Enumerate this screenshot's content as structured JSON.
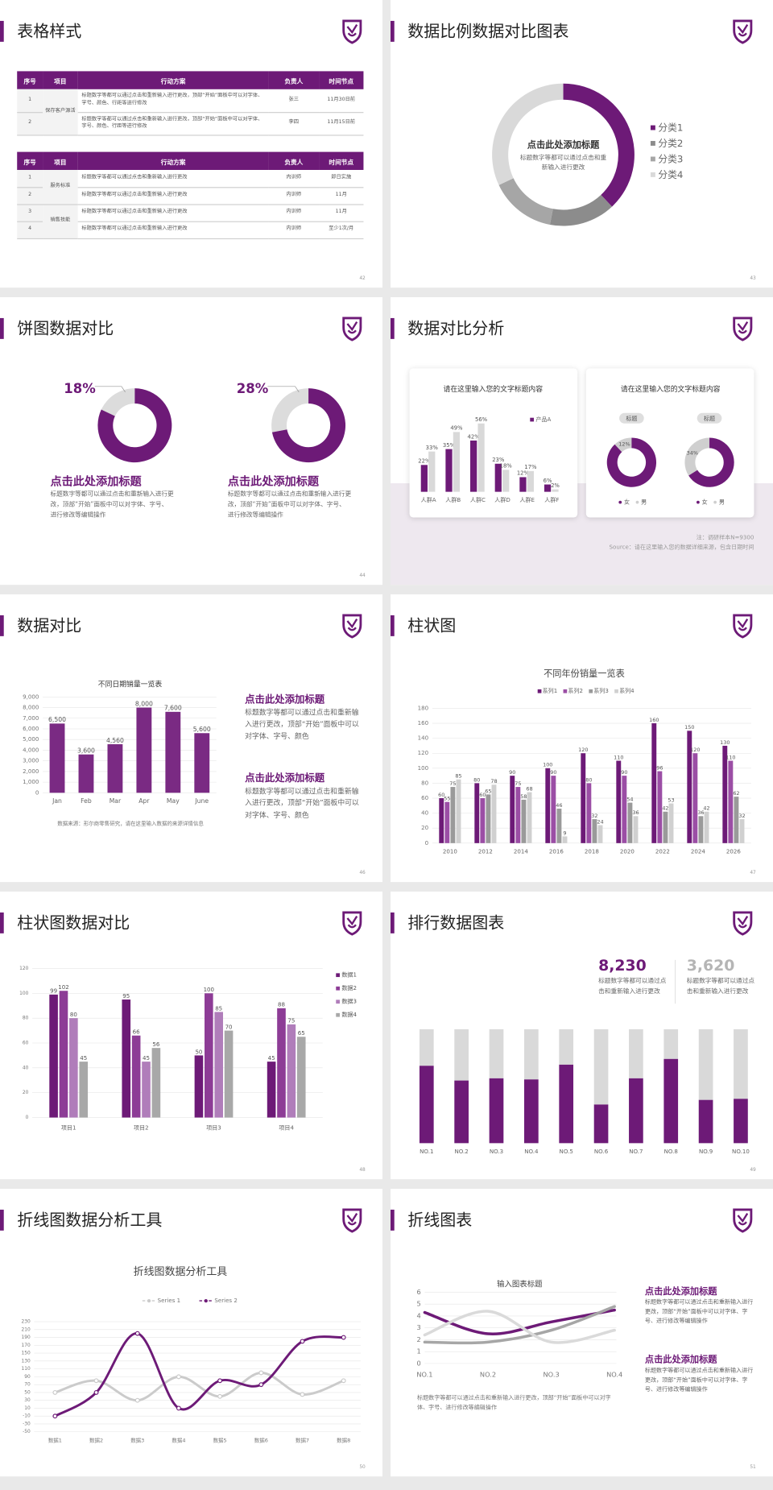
{
  "slides": [
    {
      "title": "表格样式",
      "page": "42",
      "table1": {
        "header": [
          "序号",
          "项目",
          "行动方案",
          "负责人",
          "时间节点"
        ],
        "groups": [
          {
            "project": "保存客户源活",
            "rows": [
              [
                "1",
                "标题数字等都可以通过点击和重新输入进行更改，顶部“开始”面板中可以对字体、字号、颜色、行距等进行修改",
                "张三",
                "11月30日前"
              ],
              [
                "2",
                "标题数字等都可以通过点击和重新输入进行更改，顶部“开始”面板中可以对字体、字号、颜色、行距等进行修改",
                "李四",
                "11月15日前"
              ]
            ]
          }
        ]
      },
      "table2": {
        "header": [
          "序号",
          "项目",
          "行动方案",
          "负责人",
          "时间节点"
        ],
        "groups": [
          {
            "project": "服务标准",
            "rows": [
              [
                "1",
                "标题数字等都可以通过点击和重新输入进行更改",
                "内训师",
                "即日实施"
              ],
              [
                "2",
                "标题数字等都可以通过点击和重新输入进行更改",
                "内训师",
                "11月"
              ]
            ]
          },
          {
            "project": "销售技能",
            "rows": [
              [
                "3",
                "标题数字等都可以通过点击和重新输入进行更改",
                "内训师",
                "11月"
              ],
              [
                "4",
                "标题数字等都可以通过点击和重新输入进行更改",
                "内训师",
                "至少1次/月"
              ]
            ]
          }
        ]
      }
    },
    {
      "title": "数据比例数据对比图表",
      "page": "43",
      "chart": {
        "type": "donut",
        "title": "点击此处添加标题",
        "text": "标题数字等都可以通过点击和重新输入进行更改",
        "categories": [
          "分类1",
          "分类2",
          "分类3",
          "分类4"
        ],
        "values": [
          38,
          15,
          15,
          32
        ],
        "colors": [
          "#6d1a77",
          "#8c8c8c",
          "#a6a6a6",
          "#d9d9d9"
        ]
      }
    },
    {
      "title": "饼图数据对比",
      "page": "44",
      "charts": [
        {
          "type": "donut",
          "values": [
            18
          ],
          "value_labels": [
            "18%"
          ],
          "colors": [
            "#dcdcdc",
            "#6d1a77"
          ],
          "title": "点击此处添加标题",
          "text": "标题数字等都可以通过点击和重新输入进行更改，顶部“开始”面板中可以对字体、字号、进行修改等编辑操作"
        },
        {
          "type": "donut",
          "values": [
            28
          ],
          "value_labels": [
            "28%"
          ],
          "colors": [
            "#dcdcdc",
            "#6d1a77"
          ],
          "title": "点击此处添加标题",
          "text": "标题数字等都可以通过点击和重新输入进行更改，顶部“开始”面板中可以对字体、字号、进行修改等编辑操作"
        }
      ]
    },
    {
      "title": "数据对比分析",
      "page": "45",
      "card1": {
        "title": "请在这里输入您的文字标题内容",
        "chart": {
          "type": "bar",
          "categories": [
            "人群A",
            "人群B",
            "人群C",
            "人群D",
            "人群E",
            "人群F"
          ],
          "series": [
            {
              "name": "产品A",
              "color": "#6d1a77",
              "values": [
                22,
                35,
                42,
                23,
                12,
                6
              ],
              "value_labels": [
                "22%",
                "35%",
                "42%",
                "23%",
                "12%",
                "6%"
              ]
            },
            {
              "color": "#d9d9d9",
              "values": [
                33,
                49,
                56,
                18,
                17,
                2
              ],
              "value_labels": [
                "33%",
                "49%",
                "56%",
                "18%",
                "17%",
                "2%"
              ]
            }
          ]
        }
      },
      "card2": {
        "title": "请在这里输入您的文字标题内容",
        "legend": [
          "女",
          "男"
        ],
        "colors": [
          "#6d1a77",
          "#cfcfcf"
        ],
        "charts": [
          {
            "type": "donut",
            "badge": "标题",
            "values": [
              12
            ],
            "value_labels": [
              "12%"
            ]
          },
          {
            "type": "donut",
            "badge": "标题",
            "values": [
              34
            ],
            "value_labels": [
              "34%"
            ]
          }
        ]
      },
      "notes": [
        "注：调研样本N=9300",
        "Source：请在这里输入您的数据详细来源，包含日期时间"
      ]
    },
    {
      "title": "数据对比",
      "page": "46",
      "chart": {
        "type": "bar",
        "title": "不同日期销量一览表",
        "categories": [
          "Jan",
          "Feb",
          "Mar",
          "Apr",
          "May",
          "June"
        ],
        "series": [
          {
            "color": "#7a2a83",
            "values": [
              6500,
              3600,
              4560,
              8000,
              7600,
              5600
            ],
            "value_labels": [
              "6,500",
              "3,600",
              "4,560",
              "8,000",
              "7,600",
              "5,600"
            ]
          }
        ],
        "ylim": [
          0,
          9000
        ],
        "yticks": [
          0,
          {
            "value": 1000,
            "label": "1,000"
          },
          {
            "value": 2000,
            "label": "2,000"
          },
          {
            "value": 3000,
            "label": "3,000"
          },
          {
            "value": 4000,
            "label": "4,000"
          },
          {
            "value": 5000,
            "label": "5,000"
          },
          {
            "value": 6000,
            "label": "6,000"
          },
          {
            "value": 7000,
            "label": "7,000"
          },
          {
            "value": 8000,
            "label": "8,000"
          },
          {
            "value": 9000,
            "label": "9,000"
          }
        ],
        "grid": true,
        "note": "数据来源：形尔商零售研究，请在这里输入数据的来源详情信息"
      },
      "blocks": [
        {
          "title": "点击此处添加标题",
          "text": "标题数字等都可以通过点击和重新输入进行更改，顶部“开始”面板中可以对字体、字号、颜色"
        },
        {
          "title": "点击此处添加标题",
          "text": "标题数字等都可以通过点击和重新输入进行更改，顶部“开始”面板中可以对字体、字号、颜色"
        }
      ]
    },
    {
      "title": "柱状图",
      "page": "47",
      "chart": {
        "type": "bar",
        "title": "不同年份销量一览表",
        "categories": [
          "2010",
          "2012",
          "2014",
          "2016",
          "2018",
          "2020",
          "2022",
          "2024",
          "2026"
        ],
        "series": [
          {
            "name": "系列1",
            "color": "#6d1a77",
            "values": [
              60,
              80,
              90,
              100,
              120,
              110,
              160,
              150,
              130
            ]
          },
          {
            "name": "系列2",
            "color": "#9b4ea5",
            "values": [
              55,
              60,
              75,
              90,
              80,
              90,
              96,
              120,
              110
            ]
          },
          {
            "name": "系列3",
            "color": "#9a9a9a",
            "values": [
              75,
              65,
              58,
              46,
              32,
              54,
              42,
              36,
              62
            ]
          },
          {
            "name": "系列4",
            "color": "#d0d0d0",
            "values": [
              85,
              78,
              68,
              9,
              24,
              36,
              53,
              42,
              32
            ]
          }
        ],
        "ylim": [
          0,
          180
        ],
        "yticks": [
          0,
          20,
          40,
          60,
          80,
          100,
          120,
          140,
          160,
          180
        ],
        "grid": true
      }
    },
    {
      "title": "柱状图数据对比",
      "page": "48",
      "chart": {
        "type": "bar",
        "categories": [
          "项目1",
          "项目2",
          "项目3",
          "项目4"
        ],
        "series": [
          {
            "name": "数据1",
            "color": "#6d1a77",
            "values": [
              99,
              95,
              50,
              45
            ]
          },
          {
            "name": "数据2",
            "color": "#8d3c96",
            "values": [
              102,
              66,
              100,
              88
            ]
          },
          {
            "name": "数据3",
            "color": "#b07dba",
            "values": [
              80,
              45,
              85,
              75
            ]
          },
          {
            "name": "数据4",
            "color": "#a8a8a8",
            "values": [
              45,
              56,
              70,
              65
            ]
          }
        ],
        "ylim": [
          0,
          120
        ],
        "yticks": [
          0,
          20,
          40,
          60,
          80,
          100,
          120
        ],
        "grid": true
      }
    },
    {
      "title": "排行数据图表",
      "page": "49",
      "stats": [
        {
          "value": "8,230",
          "text": "标题数字等都可以通过点击和重新输入进行更改",
          "color": "#6d1a77"
        },
        {
          "value": "3,620",
          "text": "标题数字等都可以通过点击和重新输入进行更改",
          "color": "#b5b5b5"
        }
      ],
      "chart": {
        "type": "stacked-bar",
        "categories": [
          "NO.1",
          "NO.2",
          "NO.3",
          "NO.4",
          "NO.5",
          "NO.6",
          "NO.7",
          "NO.8",
          "NO.9",
          "NO.10"
        ],
        "series": [
          {
            "color": "#6d1a77",
            "values": [
              68,
              55,
              57,
              56,
              69,
              34,
              57,
              74,
              38,
              39
            ]
          },
          {
            "color": "#d9d9d9",
            "values": [
              32,
              45,
              43,
              44,
              31,
              66,
              43,
              26,
              62,
              61
            ]
          }
        ],
        "ylim": [
          0,
          100
        ]
      }
    },
    {
      "title": "折线图数据分析工具",
      "page": "50",
      "chart": {
        "type": "line",
        "title": "折线图数据分析工具",
        "categories": [
          "数据1",
          "数据2",
          "数据3",
          "数据4",
          "数据5",
          "数据6",
          "数据7",
          "数据8"
        ],
        "series": [
          {
            "name": "Series 1",
            "color": "#cbcbcb",
            "values": [
              50,
              80,
              30,
              90,
              40,
              100,
              45,
              80
            ]
          },
          {
            "name": "Series 2",
            "color": "#6d1a77",
            "values": [
              -10,
              50,
              200,
              10,
              80,
              70,
              180,
              190
            ]
          }
        ],
        "ylim": [
          -50,
          230
        ],
        "yticks": [
          -50,
          -30,
          -10,
          10,
          30,
          50,
          70,
          90,
          110,
          130,
          150,
          170,
          190,
          210,
          230
        ],
        "grid": true,
        "smooth": true
      }
    },
    {
      "title": "折线图表",
      "page": "51",
      "chart": {
        "type": "line",
        "title": "输入图表标题",
        "categories": [
          "NO.1",
          "NO.2",
          "NO.3",
          "NO.4"
        ],
        "series": [
          {
            "color": "#6d1a77",
            "values": [
              4.3,
              2.5,
              3.5,
              4.5
            ]
          },
          {
            "color": "#a6a6a6",
            "values": [
              1.8,
              1.8,
              2.8,
              4.8
            ]
          },
          {
            "color": "#dadada",
            "values": [
              2.4,
              4.4,
              1.8,
              2.8
            ]
          }
        ],
        "ylim": [
          0,
          6
        ],
        "yticks": [
          0,
          1,
          2,
          3,
          4,
          5,
          6
        ],
        "grid": true,
        "smooth": true,
        "note": "标题数字等都可以通过点击和重新输入进行更改，顶部“开始”面板中可以对字体、字号、进行修改等编辑操作"
      },
      "blocks": [
        {
          "title": "点击此处添加标题",
          "text": "标题数字等都可以通过点击和重新输入进行更改，顶部“开始”面板中可以对字体、字号、进行修改等编辑操作"
        },
        {
          "title": "点击此处添加标题",
          "text": "标题数字等都可以通过点击和重新输入进行更改，顶部“开始”面板中可以对字体、字号、进行修改等编辑操作"
        }
      ]
    }
  ]
}
